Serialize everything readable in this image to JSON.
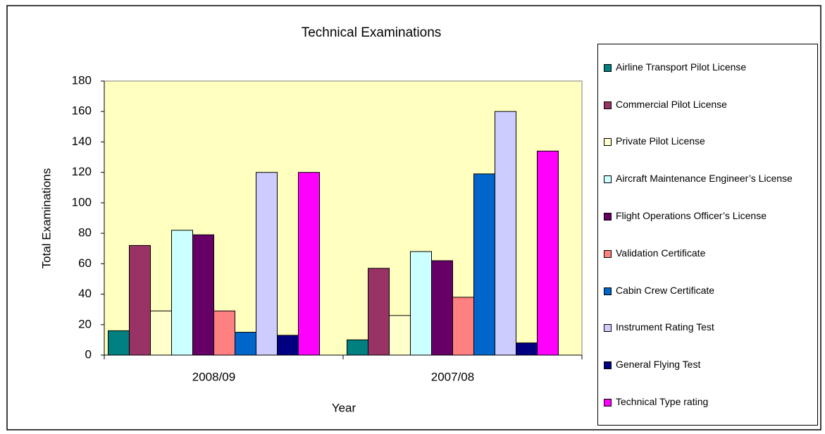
{
  "chart_data": {
    "type": "bar",
    "title": "Technical Examinations",
    "xlabel": "Year",
    "ylabel": "Total Examinations",
    "categories": [
      "2008/09",
      "2007/08"
    ],
    "series": [
      {
        "name": "Airline Transport Pilot License",
        "color": "#008080",
        "values": [
          16,
          10
        ]
      },
      {
        "name": "Commercial Pilot License",
        "color": "#993366",
        "values": [
          72,
          57
        ]
      },
      {
        "name": "Private Pilot License",
        "color": "#ffffcc",
        "values": [
          29,
          26
        ]
      },
      {
        "name": "Aircraft Maintenance Engineer’s License",
        "color": "#ccffff",
        "values": [
          82,
          68
        ]
      },
      {
        "name": "Flight Operations Officer’s License",
        "color": "#660066",
        "values": [
          79,
          62
        ]
      },
      {
        "name": "Validation Certificate",
        "color": "#ff8080",
        "values": [
          29,
          38
        ]
      },
      {
        "name": "Cabin Crew Certificate",
        "color": "#0066cc",
        "values": [
          15,
          119
        ]
      },
      {
        "name": "Instrument Rating Test",
        "color": "#ccccff",
        "values": [
          120,
          160
        ]
      },
      {
        "name": "General Flying Test",
        "color": "#000080",
        "values": [
          13,
          8
        ]
      },
      {
        "name": "Technical Type rating",
        "color": "#ff00ff",
        "values": [
          120,
          134
        ]
      }
    ],
    "ylim": [
      0,
      180
    ],
    "yticks": [
      0,
      20,
      40,
      60,
      80,
      100,
      120,
      140,
      160,
      180
    ],
    "grid": false,
    "plot_background": "#ffffc0",
    "legend": "right"
  }
}
